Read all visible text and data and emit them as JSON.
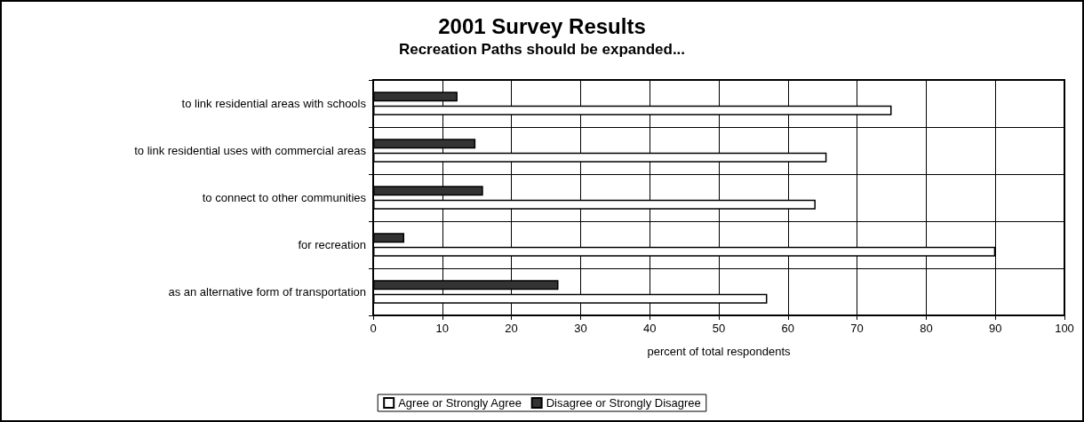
{
  "chart_data": {
    "type": "bar",
    "orientation": "horizontal",
    "title": "2001 Survey Results",
    "subtitle": "Recreation Paths should be expanded...",
    "xlabel": "percent of total respondents",
    "categories": [
      "to link residential areas with schools",
      "to link residential uses with commercial areas",
      "to connect to other communities",
      "for recreation",
      "as an alternative form of transportation"
    ],
    "series": [
      {
        "name": "Agree or Strongly Agree",
        "color": "#ffffff",
        "values": [
          75,
          65.6,
          64,
          90,
          57
        ]
      },
      {
        "name": "Disagree or Strongly Disagree",
        "color": "#333333",
        "values": [
          12.2,
          14.8,
          15.9,
          4.5,
          26.8
        ]
      }
    ],
    "xlim": [
      0,
      100
    ],
    "xticks": [
      0,
      10,
      20,
      30,
      40,
      50,
      60,
      70,
      80,
      90,
      100
    ],
    "grid": true,
    "legend": "bottom"
  }
}
